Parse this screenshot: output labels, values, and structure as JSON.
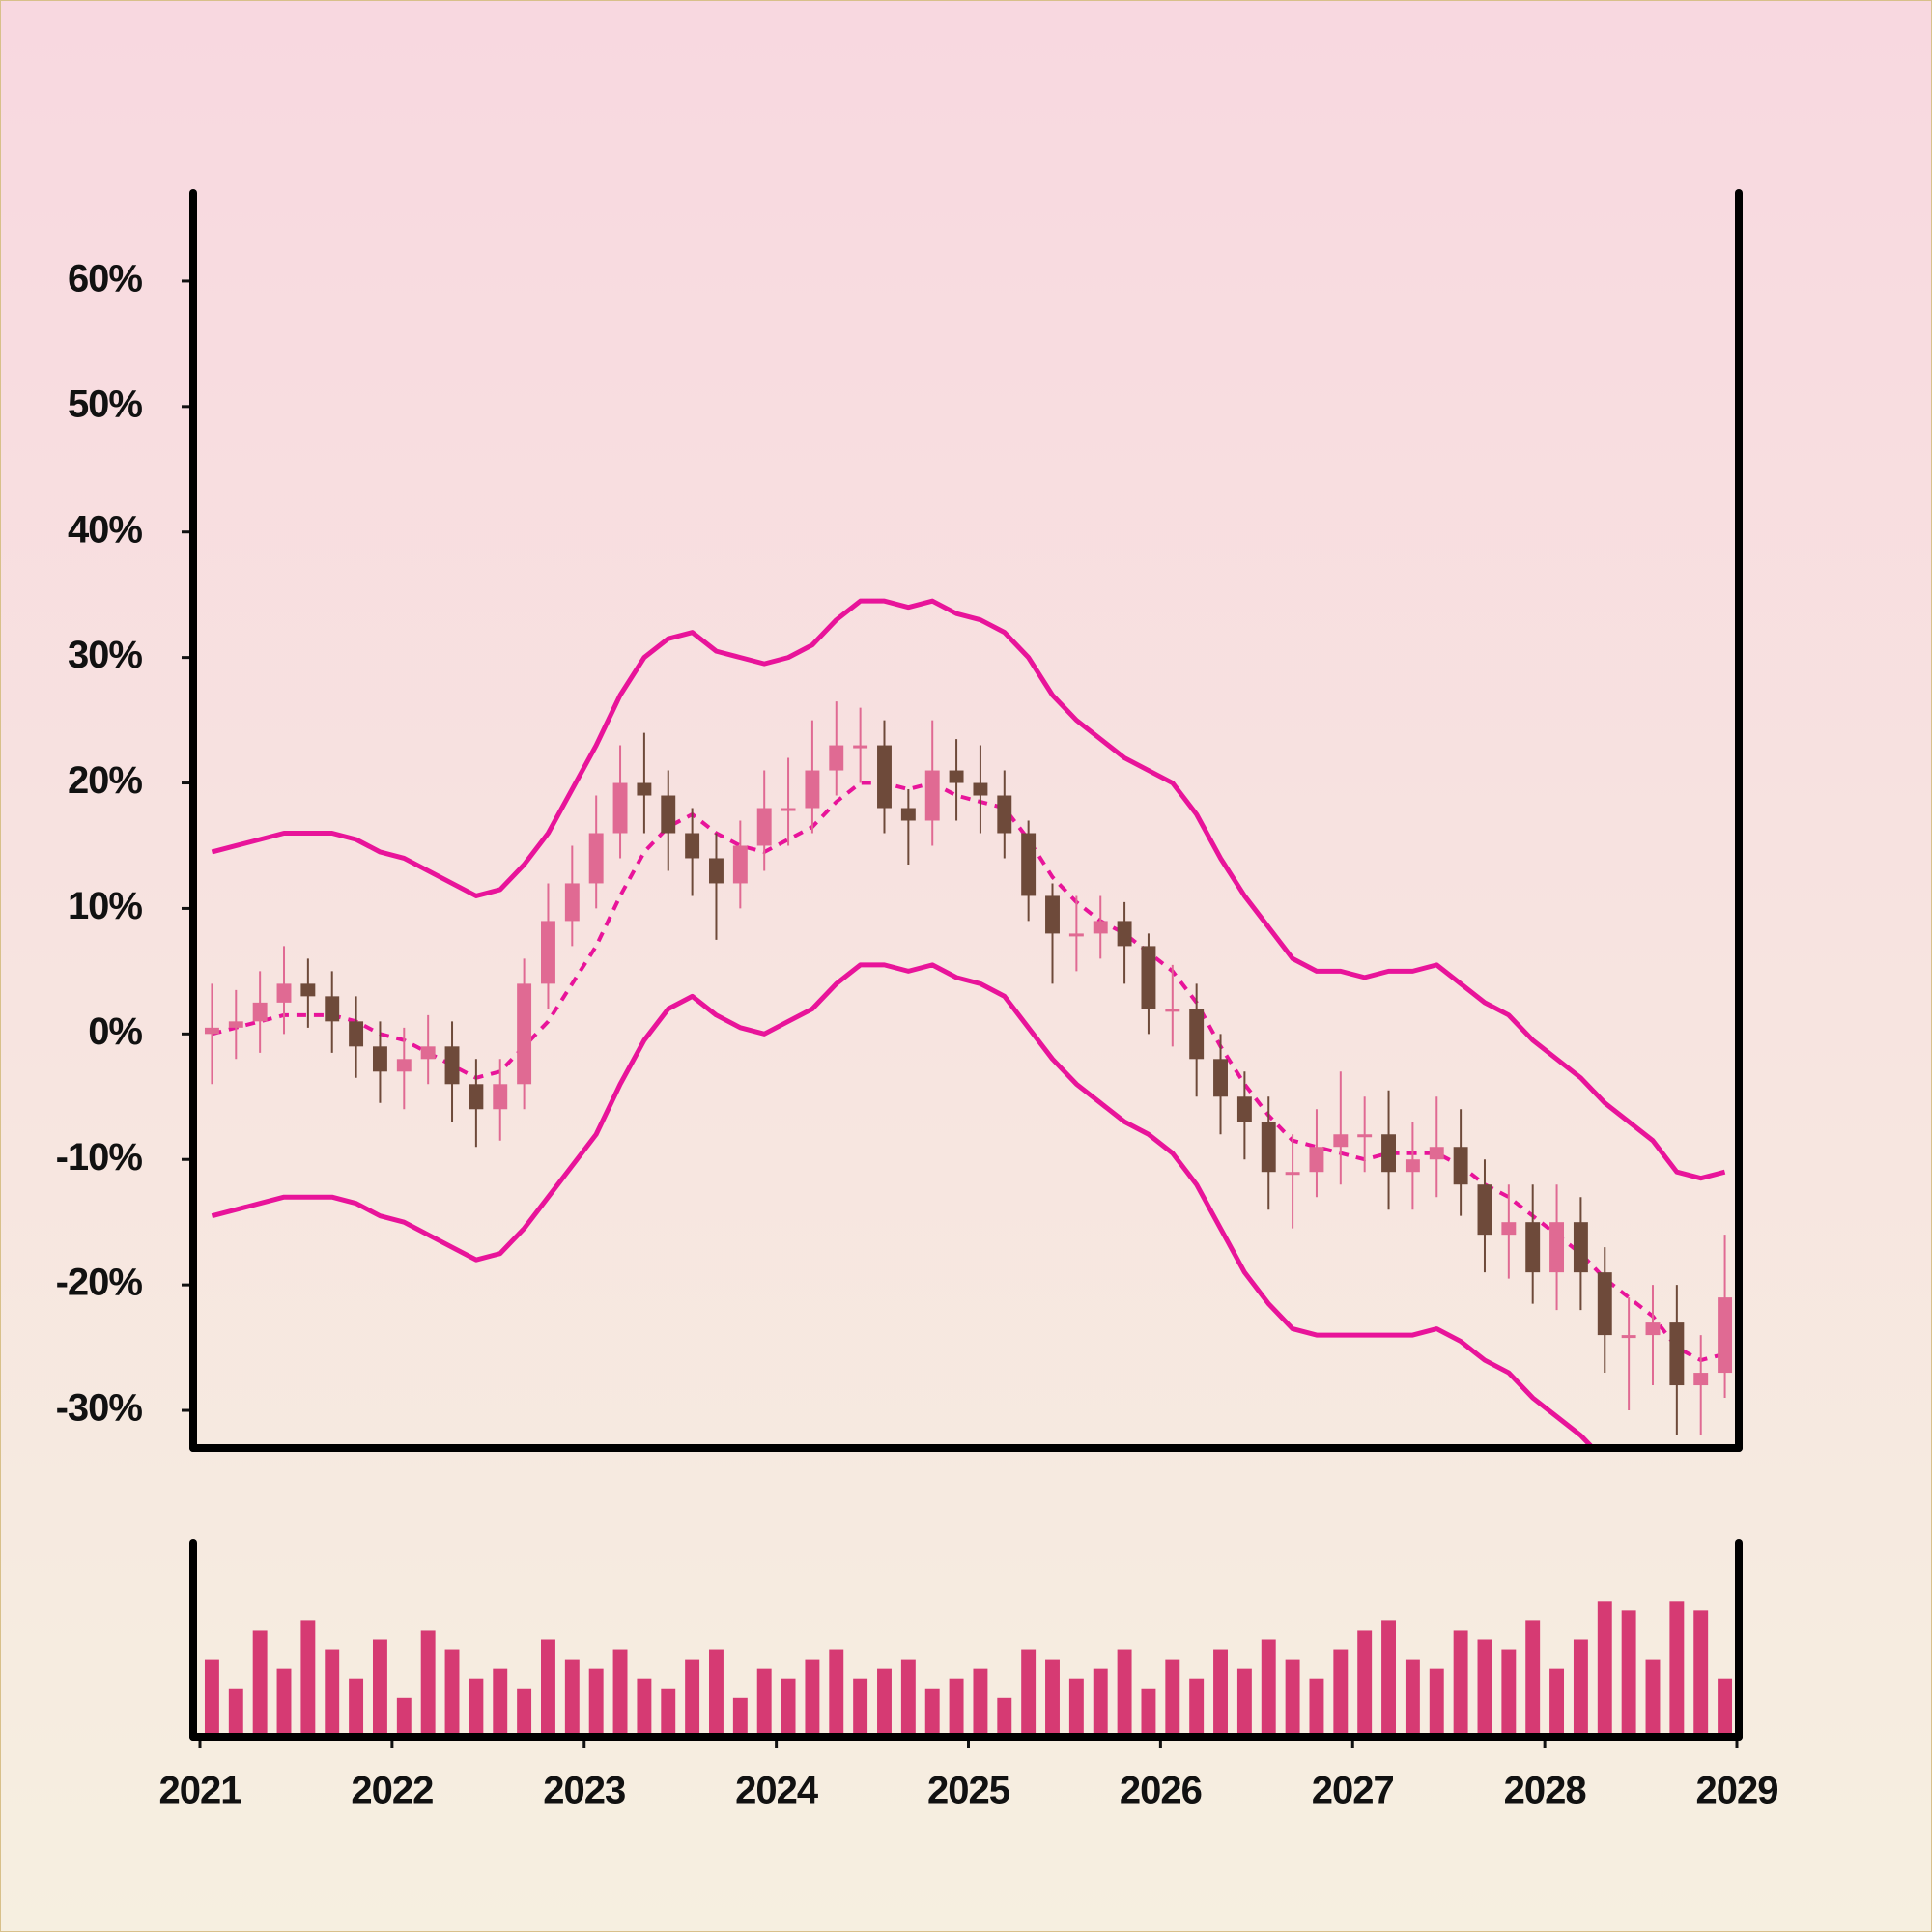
{
  "chart_data": {
    "type": "candlestick",
    "x": [
      2021.0625,
      2021.1875,
      2021.3125,
      2021.4375,
      2021.5625,
      2021.6875,
      2021.8125,
      2021.9375,
      2022.0625,
      2022.1875,
      2022.3125,
      2022.4375,
      2022.5625,
      2022.6875,
      2022.8125,
      2022.9375,
      2023.0625,
      2023.1875,
      2023.3125,
      2023.4375,
      2023.5625,
      2023.6875,
      2023.8125,
      2023.9375,
      2024.0625,
      2024.1875,
      2024.3125,
      2024.4375,
      2024.5625,
      2024.6875,
      2024.8125,
      2024.9375,
      2025.0625,
      2025.1875,
      2025.3125,
      2025.4375,
      2025.5625,
      2025.6875,
      2025.8125,
      2025.9375,
      2026.0625,
      2026.1875,
      2026.3125,
      2026.4375,
      2026.5625,
      2026.6875,
      2026.8125,
      2026.9375,
      2027.0625,
      2027.1875,
      2027.3125,
      2027.4375,
      2027.5625,
      2027.6875,
      2027.8125,
      2027.9375,
      2028.0625,
      2028.1875,
      2028.3125,
      2028.4375,
      2028.5625,
      2028.6875,
      2028.8125,
      2028.9375
    ],
    "open": [
      0,
      0.5,
      1,
      2.5,
      4,
      3,
      1,
      -1,
      -3,
      -2,
      -1,
      -4,
      -6,
      -4,
      4,
      9,
      12,
      16,
      20,
      19,
      16,
      14,
      12,
      15,
      18,
      18,
      21,
      23,
      23,
      18,
      17,
      21,
      20,
      19,
      16,
      11,
      8,
      8,
      9,
      7,
      2,
      2,
      -2,
      -5,
      -7,
      -11,
      -11,
      -9,
      -8,
      -8,
      -11,
      -10,
      -9,
      -12,
      -16,
      -15,
      -19,
      -15,
      -19,
      -24,
      -24,
      -23,
      -28,
      -27
    ],
    "high": [
      4,
      3.5,
      5,
      7,
      6,
      5,
      3,
      1,
      0.5,
      1.5,
      1,
      -2,
      -2,
      6,
      12,
      15,
      19,
      23,
      24,
      21,
      18,
      16,
      17,
      21,
      22,
      25,
      26.5,
      26,
      25,
      19.5,
      25,
      23.5,
      23,
      21,
      17,
      12,
      11,
      11,
      10.5,
      8,
      5.5,
      4,
      0,
      -3,
      -5,
      -8,
      -6,
      -3,
      -5,
      -4.5,
      -7,
      -5,
      -6,
      -10,
      -12,
      -12,
      -12,
      -13,
      -17,
      -21,
      -20,
      -20,
      -24,
      -16
    ],
    "low": [
      -4,
      -2,
      -1.5,
      0,
      0.5,
      -1.5,
      -3.5,
      -5.5,
      -6,
      -4,
      -7,
      -9,
      -8.5,
      -6,
      2,
      7,
      10,
      14,
      16,
      13,
      11,
      7.5,
      10,
      13,
      15,
      16,
      19,
      20,
      16,
      13.5,
      15,
      17,
      16,
      14,
      9,
      4,
      5,
      6,
      4,
      0,
      -1,
      -5,
      -8,
      -10,
      -14,
      -15.5,
      -13,
      -12,
      -11,
      -14,
      -14,
      -13,
      -14.5,
      -19,
      -19.5,
      -21.5,
      -22,
      -22,
      -27,
      -30,
      -28,
      -32,
      -32,
      -29
    ],
    "close": [
      0.5,
      1,
      2.5,
      4,
      3,
      1,
      -1,
      -3,
      -2,
      -1,
      -4,
      -6,
      -4,
      4,
      9,
      12,
      16,
      20,
      19,
      16,
      14,
      12,
      15,
      18,
      18,
      21,
      23,
      23,
      18,
      17,
      21,
      20,
      19,
      16,
      11,
      8,
      8,
      9,
      7,
      2,
      2,
      -2,
      -5,
      -7,
      -11,
      -11,
      -9,
      -8,
      -8,
      -11,
      -10,
      -9,
      -12,
      -16,
      -15,
      -19,
      -15,
      -19,
      -24,
      -24,
      -23,
      -28,
      -27,
      -21
    ],
    "ma": [
      0,
      0.5,
      1,
      1.5,
      1.5,
      1.5,
      1,
      0,
      -0.5,
      -1.5,
      -2.5,
      -3.5,
      -3,
      -1,
      1,
      4,
      7,
      11,
      14.5,
      16.5,
      17.5,
      16,
      15,
      14.5,
      15.5,
      16.5,
      18.5,
      20,
      20,
      19.5,
      20,
      19,
      18.5,
      18,
      15.5,
      12.5,
      10.5,
      9,
      8,
      6.5,
      5,
      2.5,
      -1,
      -4,
      -6.5,
      -8.5,
      -9,
      -9.5,
      -10,
      -9.5,
      -9.5,
      -9.5,
      -10.5,
      -12,
      -13,
      -14.5,
      -16,
      -17.5,
      -19.5,
      -21,
      -22.5,
      -25,
      -26,
      -25.5
    ],
    "upper_band": [
      14.5,
      15,
      15.5,
      16,
      16,
      16,
      15.5,
      14.5,
      14,
      13,
      12,
      11,
      11.5,
      13.5,
      16,
      19.5,
      23,
      27,
      30,
      31.5,
      32,
      30.5,
      30,
      29.5,
      30,
      31,
      33,
      34.5,
      34.5,
      34,
      34.5,
      33.5,
      33,
      32,
      30,
      27,
      25,
      23.5,
      22,
      21,
      20,
      17.5,
      14,
      11,
      8.5,
      6,
      5,
      5,
      4.5,
      5,
      5,
      5.5,
      4,
      2.5,
      1.5,
      -0.5,
      -2,
      -3.5,
      -5.5,
      -7,
      -8.5,
      -11,
      -11.5,
      -11
    ],
    "lower_band": [
      -14.5,
      -14,
      -13.5,
      -13,
      -13,
      -13,
      -13.5,
      -14.5,
      -15,
      -16,
      -17,
      -18,
      -17.5,
      -15.5,
      -13,
      -10.5,
      -8,
      -4,
      -0.5,
      2,
      3,
      1.5,
      0.5,
      0,
      1,
      2,
      4,
      5.5,
      5.5,
      5,
      5.5,
      4.5,
      4,
      3,
      0.5,
      -2,
      -4,
      -5.5,
      -7,
      -8,
      -9.5,
      -12,
      -15.5,
      -19,
      -21.5,
      -23.5,
      -24,
      -24,
      -24,
      -24,
      -24,
      -23.5,
      -24.5,
      -26,
      -27,
      -29,
      -30.5,
      -32,
      -34,
      -35,
      -36.5,
      -39,
      -40,
      -40
    ],
    "volume": [
      40,
      25,
      55,
      35,
      60,
      45,
      30,
      50,
      20,
      55,
      45,
      30,
      35,
      25,
      50,
      40,
      35,
      45,
      30,
      25,
      40,
      45,
      20,
      35,
      30,
      40,
      45,
      30,
      35,
      40,
      25,
      30,
      35,
      20,
      45,
      40,
      30,
      35,
      45,
      25,
      40,
      30,
      45,
      35,
      50,
      40,
      30,
      45,
      55,
      60,
      40,
      35,
      55,
      50,
      45,
      60,
      35,
      50,
      70,
      65,
      40,
      70,
      65,
      30
    ],
    "up_color": "#e06a93",
    "down_color": "#6e4a3a",
    "band_color": "#e8149a",
    "volume_color": "#d63a73",
    "xlim": [
      2021,
      2029
    ],
    "xticks": [
      2021,
      2022,
      2023,
      2024,
      2025,
      2026,
      2027,
      2028,
      2029
    ],
    "ylim": [
      -33,
      67
    ],
    "yticks": [
      {
        "value": -30,
        "label": "-30%"
      },
      {
        "value": -20,
        "label": "-20%"
      },
      {
        "value": -10,
        "label": "-10%"
      },
      {
        "value": 0,
        "label": "0%"
      },
      {
        "value": 10,
        "label": "10%"
      },
      {
        "value": 20,
        "label": "20%"
      },
      {
        "value": 30,
        "label": "30%"
      },
      {
        "value": 40,
        "label": "40%"
      },
      {
        "value": 50,
        "label": "50%"
      },
      {
        "value": 60,
        "label": "60%"
      }
    ],
    "volume_ylim": [
      0,
      100
    ]
  }
}
